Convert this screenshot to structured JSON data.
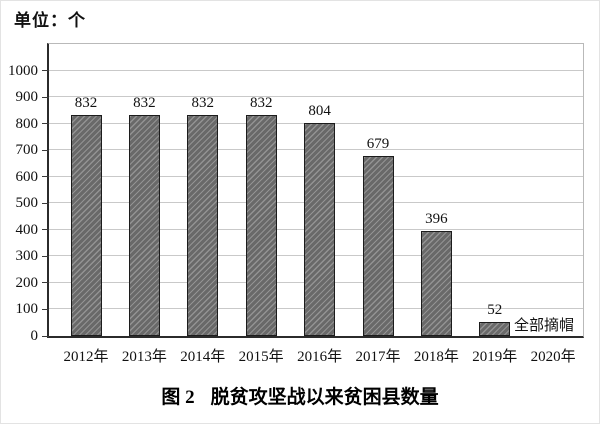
{
  "unit_label": "单位：个",
  "caption_prefix": "图 2",
  "caption_title": "脱贫攻坚战以来贫困县数量",
  "colors": {
    "bar_fill": "#696969",
    "bar_hatch_line": "#8f8f8f",
    "bar_border": "#1c1c1c",
    "gridline": "#c9c9c9",
    "axis": "#2b2b2b",
    "text": "#111111"
  },
  "chart_data": {
    "type": "bar",
    "title": "图 2 脱贫攻坚战以来贫困县数量",
    "unit": "单位：个",
    "categories": [
      "2012年",
      "2013年",
      "2014年",
      "2015年",
      "2016年",
      "2017年",
      "2018年",
      "2019年",
      "2020年"
    ],
    "values": [
      832,
      832,
      832,
      832,
      804,
      679,
      396,
      52,
      null
    ],
    "bar_labels": [
      "832",
      "832",
      "832",
      "832",
      "804",
      "679",
      "396",
      "52",
      ""
    ],
    "annotation": {
      "text": "全部摘帽",
      "category": "2020年"
    },
    "ylim": [
      0,
      1100
    ],
    "yticks": [
      0,
      100,
      200,
      300,
      400,
      500,
      600,
      700,
      800,
      900,
      1000
    ],
    "grid": true,
    "hatch": "diagonal",
    "legend_position": "none"
  }
}
